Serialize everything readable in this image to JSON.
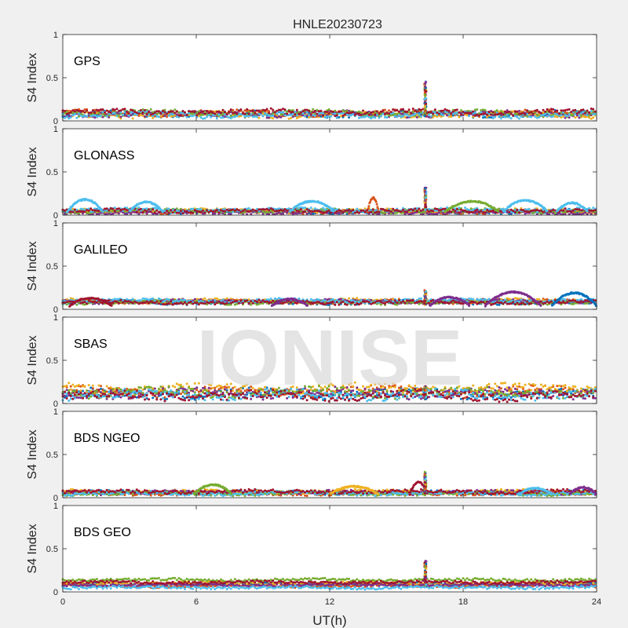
{
  "chart_data": {
    "type": "scatter",
    "title": "HNLE20230723",
    "xlabel": "UT(h)",
    "ylabel": "S4 Index",
    "xlim": [
      0,
      24
    ],
    "ylim": [
      0,
      1
    ],
    "xticks": [
      "0",
      "6",
      "12",
      "18",
      "24"
    ],
    "yticks": [
      "0",
      "0.5",
      "1"
    ],
    "watermark": "IONISE",
    "series_colors": [
      "#0072BD",
      "#D95319",
      "#EDB120",
      "#7E2F8E",
      "#77AC30",
      "#4DBEEE",
      "#A2142F"
    ],
    "panels": [
      {
        "name": "GPS",
        "baseline": [
          0.08,
          0.09,
          0.07,
          0.08,
          0.09,
          0.07,
          0.1
        ],
        "spread": 0.03,
        "spike": {
          "x": 16.3,
          "peak": 0.46
        },
        "arcs": []
      },
      {
        "name": "GLONASS",
        "baseline": [
          0.04,
          0.04,
          0.05,
          0.03,
          0.05,
          0.06,
          0.05
        ],
        "spread": 0.02,
        "spike": {
          "x": 16.3,
          "peak": 0.32
        },
        "arcs": [
          {
            "x0": 0.2,
            "x1": 1.8,
            "peak": 0.18,
            "series": 5
          },
          {
            "x0": 3.0,
            "x1": 4.5,
            "peak": 0.15,
            "series": 5
          },
          {
            "x0": 10.2,
            "x1": 12.2,
            "peak": 0.16,
            "series": 5
          },
          {
            "x0": 13.7,
            "x1": 14.2,
            "peak": 0.2,
            "series": 1
          },
          {
            "x0": 17.2,
            "x1": 19.6,
            "peak": 0.16,
            "series": 4
          },
          {
            "x0": 19.8,
            "x1": 21.8,
            "peak": 0.17,
            "series": 5
          },
          {
            "x0": 22.2,
            "x1": 23.6,
            "peak": 0.14,
            "series": 5
          }
        ]
      },
      {
        "name": "GALILEO",
        "baseline": [
          0.08,
          0.09,
          0.1,
          0.09,
          0.08,
          0.1,
          0.08
        ],
        "spread": 0.02,
        "spike": {
          "x": 16.3,
          "peak": 0.22
        },
        "arcs": [
          {
            "x0": 0.3,
            "x1": 2.2,
            "peak": 0.13,
            "series": 6
          },
          {
            "x0": 9.4,
            "x1": 11.0,
            "peak": 0.12,
            "series": 3
          },
          {
            "x0": 16.5,
            "x1": 18.3,
            "peak": 0.14,
            "series": 3
          },
          {
            "x0": 19.0,
            "x1": 21.5,
            "peak": 0.2,
            "series": 3
          },
          {
            "x0": 22.0,
            "x1": 24.0,
            "peak": 0.19,
            "series": 0
          }
        ]
      },
      {
        "name": "SBAS",
        "baseline": [
          0.11,
          0.14,
          0.17,
          0.12,
          0.13,
          0.1,
          0.09
        ],
        "spread": 0.05,
        "spike": {
          "x": 16.3,
          "peak": 0.2
        },
        "arcs": []
      },
      {
        "name": "BDS NGEO",
        "baseline": [
          0.06,
          0.05,
          0.07,
          0.06,
          0.05,
          0.05,
          0.07
        ],
        "spread": 0.02,
        "spike": {
          "x": 16.3,
          "peak": 0.3
        },
        "arcs": [
          {
            "x0": 5.9,
            "x1": 7.6,
            "peak": 0.15,
            "series": 4
          },
          {
            "x0": 12.0,
            "x1": 14.2,
            "peak": 0.13,
            "series": 2
          },
          {
            "x0": 15.6,
            "x1": 16.4,
            "peak": 0.18,
            "series": 6
          },
          {
            "x0": 20.5,
            "x1": 22.0,
            "peak": 0.11,
            "series": 5
          },
          {
            "x0": 22.8,
            "x1": 24.0,
            "peak": 0.12,
            "series": 3
          }
        ]
      },
      {
        "name": "BDS GEO",
        "baseline": [
          0.09,
          0.07,
          0.1,
          0.08,
          0.14,
          0.05,
          0.11
        ],
        "spread": 0.015,
        "spike": {
          "x": 16.3,
          "peak": 0.36
        },
        "arcs": []
      }
    ]
  }
}
